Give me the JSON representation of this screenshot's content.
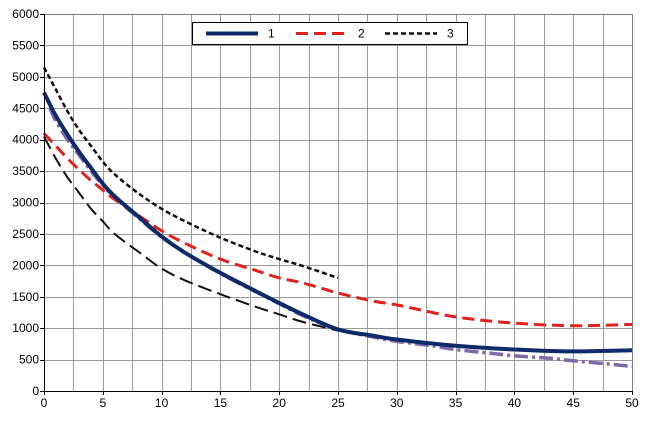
{
  "chart_data": {
    "type": "line",
    "title": "",
    "xlabel": "",
    "ylabel": "",
    "xlim": [
      0,
      50
    ],
    "ylim": [
      0,
      6000
    ],
    "x_ticks": [
      0,
      5,
      10,
      15,
      20,
      25,
      30,
      35,
      40,
      45,
      50
    ],
    "y_ticks": [
      0,
      500,
      1000,
      1500,
      2000,
      2500,
      3000,
      3500,
      4000,
      4500,
      5000,
      5500,
      6000
    ],
    "x_minor_step": 2.5,
    "grid": true,
    "legend": {
      "placement": "top-center",
      "entries": [
        "1",
        "2",
        "3"
      ]
    },
    "colors": {
      "series1": "#0d2a6b",
      "series2": "#e2221c",
      "series3": "#111111",
      "unlabeled_purple": "#7e6aa6",
      "unlabeled_black": "#111111",
      "grid": "#999999",
      "plot_border": "#808080"
    },
    "series": [
      {
        "name": "1",
        "x": [
          0,
          1,
          2,
          3,
          4,
          5,
          6,
          8,
          10,
          12,
          15,
          18,
          20,
          22,
          25,
          28,
          30,
          35,
          40,
          45,
          50
        ],
        "y": [
          4750,
          4380,
          4080,
          3800,
          3550,
          3300,
          3100,
          2780,
          2460,
          2200,
          1880,
          1590,
          1400,
          1220,
          980,
          880,
          820,
          720,
          660,
          630,
          650
        ]
      },
      {
        "name": "2",
        "x": [
          0,
          1,
          2,
          3,
          4,
          5,
          6,
          8,
          10,
          12,
          15,
          18,
          20,
          22,
          25,
          28,
          30,
          35,
          40,
          45,
          50
        ],
        "y": [
          4100,
          3900,
          3700,
          3520,
          3350,
          3200,
          3050,
          2800,
          2550,
          2350,
          2100,
          1920,
          1800,
          1720,
          1560,
          1430,
          1370,
          1180,
          1080,
          1040,
          1060
        ]
      },
      {
        "name": "3",
        "x": [
          0,
          1,
          2,
          3,
          4,
          5,
          6,
          8,
          10,
          12,
          15,
          18,
          20,
          22,
          25
        ],
        "y": [
          5150,
          4800,
          4450,
          4150,
          3900,
          3650,
          3450,
          3150,
          2900,
          2700,
          2440,
          2220,
          2100,
          1990,
          1800
        ]
      },
      {
        "x": [
          0.5,
          1,
          2,
          3,
          4,
          5,
          6,
          8,
          10,
          12,
          15,
          18,
          20,
          22,
          25,
          28,
          30,
          33,
          35,
          38,
          40,
          43,
          45,
          48,
          50
        ],
        "y": [
          4500,
          4300,
          4000,
          3750,
          3500,
          3280,
          3080,
          2760,
          2450,
          2200,
          1870,
          1580,
          1390,
          1200,
          980,
          860,
          790,
          720,
          660,
          600,
          560,
          520,
          480,
          430,
          390
        ]
      },
      {
        "x": [
          0,
          1,
          2,
          3,
          4,
          5,
          6,
          8,
          10,
          12,
          15,
          18,
          20,
          22,
          25
        ],
        "y": [
          4050,
          3700,
          3400,
          3150,
          2900,
          2700,
          2500,
          2220,
          1950,
          1760,
          1540,
          1340,
          1220,
          1100,
          960
        ]
      }
    ]
  }
}
